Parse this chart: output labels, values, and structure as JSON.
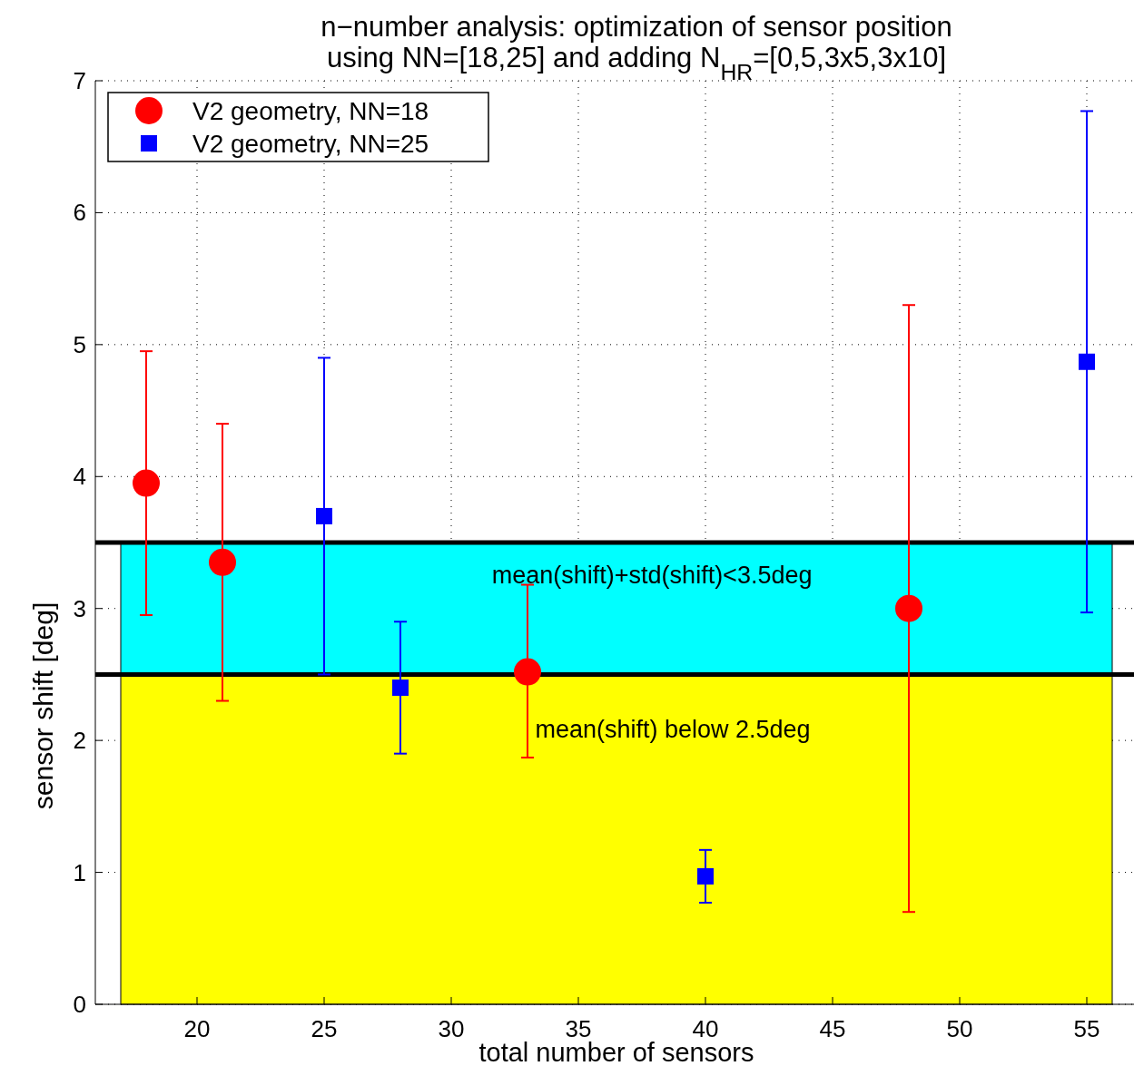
{
  "chart_data": {
    "type": "scatter",
    "title": "n−number analysis: optimization of sensor position",
    "subtitle": "using NN=[18,25] and adding N$_{HR}$=[0,5,3x5,3x10]",
    "xlabel": "total number of sensors",
    "ylabel": "sensor shift [deg]",
    "xlim": [
      16,
      57
    ],
    "xticks": [
      20,
      25,
      30,
      35,
      40,
      45,
      50,
      55
    ],
    "ylim": [
      0,
      7
    ],
    "yticks": [
      0,
      1,
      2,
      3,
      4,
      5,
      6,
      7
    ],
    "grid": true,
    "legend": "top left",
    "bands": [
      {
        "axis": "y",
        "from": 0,
        "to": 2.5,
        "label": "mean(shift) below 2.5deg",
        "color": "#ffff00"
      },
      {
        "axis": "y",
        "from": 2.5,
        "to": 3.5,
        "label": "mean(shift)+std(shift)<3.5deg",
        "color": "#00ffff"
      }
    ],
    "ref_lines": [
      {
        "axis": "y",
        "value": 2.5,
        "color": "#000000"
      },
      {
        "axis": "y",
        "value": 3.5,
        "color": "#000000"
      }
    ],
    "series": [
      {
        "name": "V2 geometry, NN=18",
        "color": "#ff0000",
        "marker": "circle",
        "x": [
          18,
          21,
          33,
          48
        ],
        "values": [
          3.95,
          3.35,
          2.52,
          3.0
        ],
        "errors": [
          [
            2.95,
            4.95
          ],
          [
            2.3,
            4.4
          ],
          [
            1.87,
            3.18
          ],
          [
            0.7,
            5.3
          ]
        ]
      },
      {
        "name": "V2 geometry, NN=25",
        "color": "#0000ff",
        "marker": "square",
        "x": [
          25,
          28,
          40,
          55
        ],
        "values": [
          3.7,
          2.4,
          0.97,
          4.87
        ],
        "errors": [
          [
            2.5,
            4.9
          ],
          [
            1.9,
            2.9
          ],
          [
            0.77,
            1.17
          ],
          [
            2.97,
            6.77
          ]
        ]
      }
    ]
  }
}
